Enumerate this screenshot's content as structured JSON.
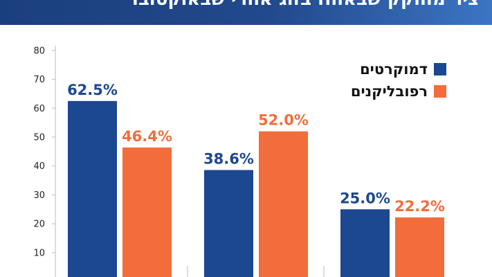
{
  "header": {
    "title": "ציר מחוקק שבאוחז בזוג אחרי שבאוקטובר"
  },
  "colors": {
    "democrats": "#1c4791",
    "republicans": "#f26d3b",
    "header": "#1b3f7e"
  },
  "chart_data": {
    "type": "bar",
    "title": "",
    "xlabel": "",
    "ylabel": "",
    "categories": [
      "",
      "",
      ""
    ],
    "series": [
      {
        "name": "דמוקרטים",
        "values": [
          62.5,
          38.6,
          25.0
        ],
        "labels": [
          "62.5%",
          "38.6%",
          "25.0%"
        ]
      },
      {
        "name": "רפובליקנים",
        "values": [
          46.4,
          52.0,
          22.2
        ],
        "labels": [
          "46.4%",
          "52.0%",
          "22.2%"
        ]
      }
    ],
    "yticks": [
      10,
      20,
      30,
      40,
      50,
      60,
      70,
      80
    ],
    "ylim": [
      0,
      80
    ],
    "legend_position": "top-right",
    "grid": false
  }
}
